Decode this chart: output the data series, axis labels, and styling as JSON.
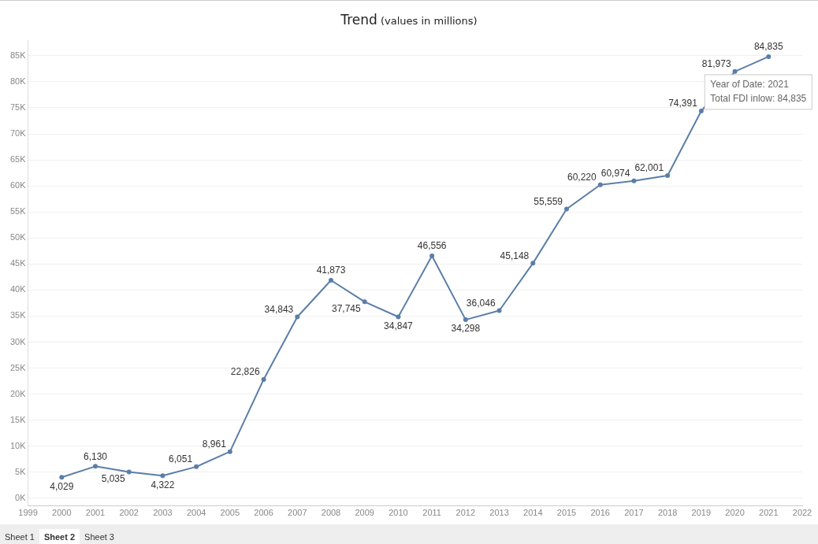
{
  "chart_data": {
    "type": "line",
    "title": "Trend",
    "subtitle": "(values in millions)",
    "x": [
      2000,
      2001,
      2002,
      2003,
      2004,
      2005,
      2006,
      2007,
      2008,
      2009,
      2010,
      2011,
      2012,
      2013,
      2014,
      2015,
      2016,
      2017,
      2018,
      2019,
      2020,
      2021
    ],
    "series": [
      {
        "color": "#5b7ea8",
        "values": [
          4029,
          6130,
          5035,
          4322,
          6051,
          8961,
          22826,
          34843,
          41873,
          37745,
          34847,
          46556,
          34298,
          36046,
          45148,
          55559,
          60220,
          60974,
          62001,
          74391,
          81973,
          84835
        ]
      }
    ],
    "xlim": [
      1999,
      2022
    ],
    "xticks": [
      1999,
      2000,
      2001,
      2002,
      2003,
      2004,
      2005,
      2006,
      2007,
      2008,
      2009,
      2010,
      2011,
      2012,
      2013,
      2014,
      2015,
      2016,
      2017,
      2018,
      2019,
      2020,
      2021,
      2022
    ],
    "ylim": [
      -1500,
      88000
    ],
    "yticks": [
      {
        "value": 0,
        "label": "0K"
      },
      {
        "value": 5000,
        "label": "5K"
      },
      {
        "value": 10000,
        "label": "10K"
      },
      {
        "value": 15000,
        "label": "15K"
      },
      {
        "value": 20000,
        "label": "20K"
      },
      {
        "value": 25000,
        "label": "25K"
      },
      {
        "value": 30000,
        "label": "30K"
      },
      {
        "value": 35000,
        "label": "35K"
      },
      {
        "value": 40000,
        "label": "40K"
      },
      {
        "value": 45000,
        "label": "45K"
      },
      {
        "value": 50000,
        "label": "50K"
      },
      {
        "value": 55000,
        "label": "55K"
      },
      {
        "value": 60000,
        "label": "60K"
      },
      {
        "value": 65000,
        "label": "65K"
      },
      {
        "value": 70000,
        "label": "70K"
      },
      {
        "value": 75000,
        "label": "75K"
      },
      {
        "value": 80000,
        "label": "80K"
      },
      {
        "value": 85000,
        "label": "85K"
      }
    ],
    "value_labels": [
      "4,029",
      "6,130",
      "5,035",
      "4,322",
      "6,051",
      "8,961",
      "22,826",
      "34,843",
      "41,873",
      "37,745",
      "34,847",
      "46,556",
      "34,298",
      "36,046",
      "45,148",
      "55,559",
      "60,220",
      "60,974",
      "62,001",
      "74,391",
      "81,973",
      "84,835"
    ],
    "grid": "y",
    "marker": "circle",
    "line_style": "solid",
    "legend": false,
    "annotations": [
      "Year of Date: 2021",
      "Total FDI inlow: 84,835",
      "Sheet 1",
      "Sheet 2",
      "Sheet 3"
    ]
  }
}
